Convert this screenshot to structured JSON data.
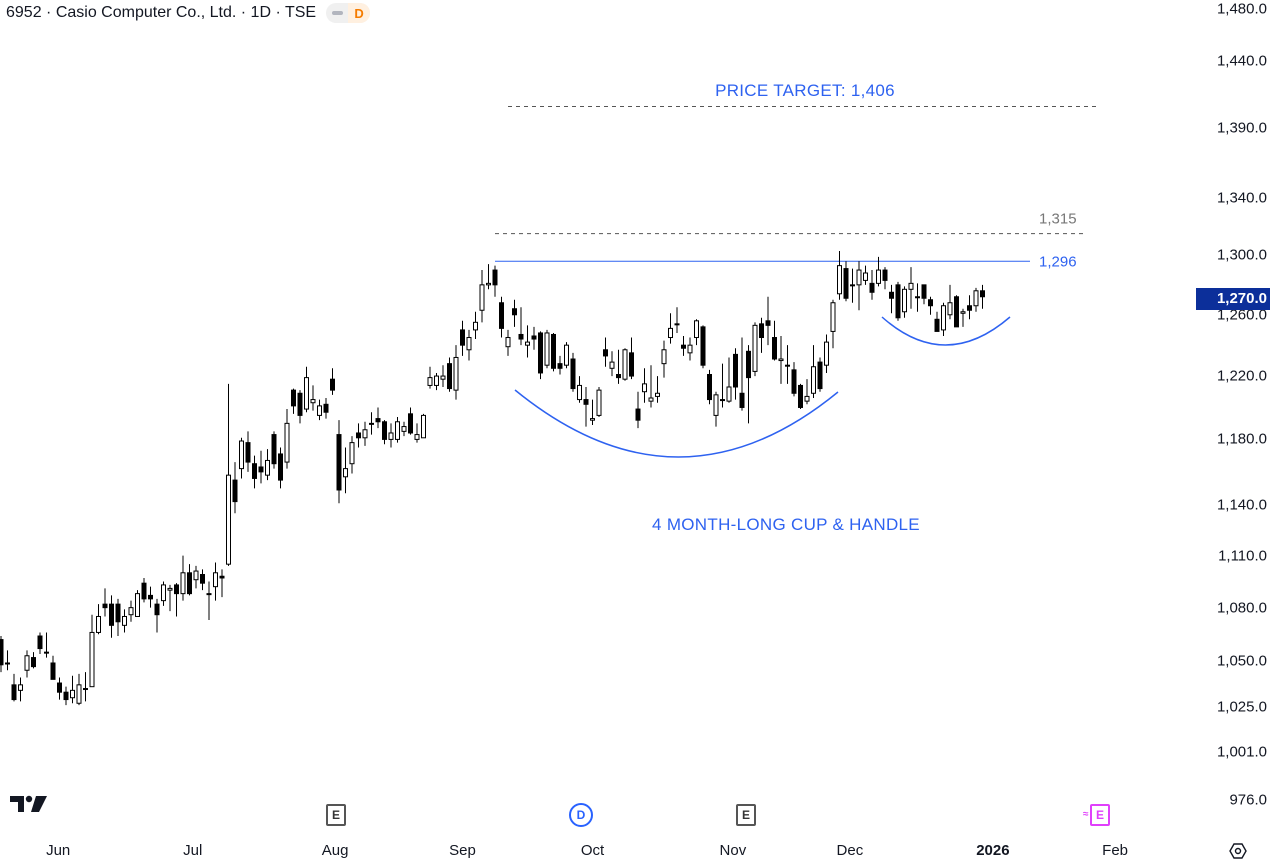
{
  "header": {
    "title": "6952 · Casio Computer Co., Ltd. · 1D · TSE",
    "market_status_badge": "D"
  },
  "annotations": {
    "price_target_label": "PRICE TARGET: 1,406",
    "pattern_label": "4 MONTH-LONG CUP & HANDLE",
    "resistance_label": "1,296",
    "upper_level_label": "1,315"
  },
  "price_axis": {
    "labels": [
      "1,480.0",
      "1,440.0",
      "1,390.0",
      "1,340.0",
      "1,300.0",
      "1,260.0",
      "1,220.0",
      "1,180.0",
      "1,140.0",
      "1,110.0",
      "1,080.0",
      "1,050.0",
      "1,025.0",
      "1,001.0",
      "976.0"
    ],
    "last_price_label": "1,270.0"
  },
  "time_axis": {
    "labels": [
      "Jun",
      "Jul",
      "Aug",
      "Sep",
      "Oct",
      "Nov",
      "Dec",
      "2026",
      "Feb"
    ]
  },
  "events": [
    {
      "type": "earnings",
      "label": "E"
    },
    {
      "type": "dividend",
      "label": "D"
    },
    {
      "type": "earnings",
      "label": "E"
    },
    {
      "type": "earnings-estimated",
      "label": "E"
    }
  ],
  "colors": {
    "accent": "#2962ff",
    "annotation": "#2e62f0",
    "last_price_badge": "#0c2f9a",
    "candle_up": "#ffffff",
    "candle_down": "#000000",
    "dashed_level": "#555555",
    "earnings_estimated": "#e040fb"
  },
  "chart_data": {
    "type": "candlestick",
    "title": "6952 · Casio Computer Co., Ltd. · 1D · TSE",
    "scale": "log",
    "ylim": [
      976,
      1480
    ],
    "y_ticks": [
      1480,
      1440,
      1390,
      1340,
      1300,
      1260,
      1220,
      1180,
      1140,
      1110,
      1080,
      1050,
      1025,
      1001,
      976
    ],
    "x_ticks": [
      {
        "label": "Jun",
        "index": 8.8
      },
      {
        "label": "Jul",
        "index": 29.5
      },
      {
        "label": "Aug",
        "index": 51.4
      },
      {
        "label": "Sep",
        "index": 71
      },
      {
        "label": "Oct",
        "index": 91
      },
      {
        "label": "Nov",
        "index": 112.6
      },
      {
        "label": "Dec",
        "index": 130.6
      },
      {
        "label": "2026",
        "index": 152.6
      },
      {
        "label": "Feb",
        "index": 171.4
      }
    ],
    "event_indices": [
      51.5,
      89.2,
      114.6,
      169
    ],
    "last_price": 1270,
    "levels": [
      {
        "name": "resistance",
        "value": 1296,
        "style": "solid",
        "from_index": 76
      },
      {
        "name": "upper",
        "value": 1315,
        "style": "dashed",
        "from_index": 76
      },
      {
        "name": "price_target",
        "value": 1406,
        "style": "dashed",
        "from_index": 78
      }
    ],
    "ohlc": [
      [
        1062,
        1064,
        1044,
        1048
      ],
      [
        1049,
        1056,
        1045,
        1049
      ],
      [
        1037,
        1043,
        1028,
        1029
      ],
      [
        1034,
        1041,
        1028,
        1037
      ],
      [
        1045,
        1056,
        1041,
        1053
      ],
      [
        1052,
        1055,
        1046,
        1047
      ],
      [
        1064,
        1066,
        1054,
        1057
      ],
      [
        1055,
        1066,
        1052,
        1055
      ],
      [
        1049,
        1053,
        1040,
        1040
      ],
      [
        1038,
        1041,
        1029,
        1033
      ],
      [
        1033,
        1036,
        1026,
        1029
      ],
      [
        1030,
        1042,
        1027,
        1034
      ],
      [
        1027,
        1043,
        1026,
        1037
      ],
      [
        1035,
        1044,
        1028,
        1035
      ],
      [
        1036,
        1076,
        1036,
        1066
      ],
      [
        1066,
        1082,
        1065,
        1075
      ],
      [
        1082,
        1091,
        1075,
        1080
      ],
      [
        1082,
        1087,
        1063,
        1070
      ],
      [
        1082,
        1085,
        1064,
        1072
      ],
      [
        1070,
        1079,
        1066,
        1075
      ],
      [
        1076,
        1084,
        1072,
        1080
      ],
      [
        1075,
        1090,
        1075,
        1088
      ],
      [
        1094,
        1097,
        1083,
        1085
      ],
      [
        1087,
        1092,
        1080,
        1085
      ],
      [
        1082,
        1085,
        1066,
        1076
      ],
      [
        1084,
        1095,
        1081,
        1093
      ],
      [
        1090,
        1093,
        1078,
        1091
      ],
      [
        1093,
        1094,
        1075,
        1088
      ],
      [
        1088,
        1110,
        1084,
        1100
      ],
      [
        1100,
        1105,
        1087,
        1088
      ],
      [
        1096,
        1104,
        1091,
        1101
      ],
      [
        1099,
        1102,
        1090,
        1094
      ],
      [
        1088,
        1095,
        1073,
        1088
      ],
      [
        1092,
        1106,
        1084,
        1100
      ],
      [
        1098,
        1102,
        1086,
        1097
      ],
      [
        1105,
        1215,
        1104,
        1158
      ],
      [
        1155,
        1166,
        1135,
        1142
      ],
      [
        1162,
        1181,
        1156,
        1179
      ],
      [
        1178,
        1185,
        1160,
        1166
      ],
      [
        1165,
        1170,
        1150,
        1156
      ],
      [
        1163,
        1173,
        1153,
        1160
      ],
      [
        1158,
        1174,
        1155,
        1167
      ],
      [
        1183,
        1185,
        1162,
        1165
      ],
      [
        1171,
        1175,
        1150,
        1155
      ],
      [
        1166,
        1199,
        1162,
        1190
      ],
      [
        1211,
        1212,
        1196,
        1201
      ],
      [
        1209,
        1211,
        1190,
        1195
      ],
      [
        1199,
        1226,
        1197,
        1219
      ],
      [
        1203,
        1214,
        1198,
        1205
      ],
      [
        1195,
        1205,
        1192,
        1201
      ],
      [
        1202,
        1206,
        1193,
        1197
      ],
      [
        1218,
        1225,
        1208,
        1211
      ],
      [
        1183,
        1192,
        1141,
        1149
      ],
      [
        1157,
        1175,
        1147,
        1162
      ],
      [
        1165,
        1182,
        1159,
        1178
      ],
      [
        1184,
        1190,
        1175,
        1181
      ],
      [
        1181,
        1191,
        1176,
        1186
      ],
      [
        1190,
        1197,
        1183,
        1190
      ],
      [
        1193,
        1200,
        1187,
        1191
      ],
      [
        1191,
        1192,
        1177,
        1180
      ],
      [
        1180,
        1190,
        1175,
        1184
      ],
      [
        1180,
        1194,
        1178,
        1191
      ],
      [
        1185,
        1191,
        1182,
        1188
      ],
      [
        1196,
        1200,
        1183,
        1184
      ],
      [
        1180,
        1190,
        1178,
        1183
      ],
      [
        1181,
        1196,
        1181,
        1195
      ],
      [
        1214,
        1226,
        1212,
        1219
      ],
      [
        1214,
        1222,
        1211,
        1220
      ],
      [
        1218,
        1227,
        1213,
        1220
      ],
      [
        1228,
        1232,
        1210,
        1212
      ],
      [
        1211,
        1240,
        1205,
        1232
      ],
      [
        1250,
        1256,
        1233,
        1240
      ],
      [
        1237,
        1250,
        1230,
        1245
      ],
      [
        1250,
        1262,
        1244,
        1255
      ],
      [
        1263,
        1290,
        1255,
        1280
      ],
      [
        1280,
        1294,
        1277,
        1281
      ],
      [
        1290,
        1293,
        1272,
        1280
      ],
      [
        1268,
        1272,
        1245,
        1251
      ],
      [
        1239,
        1250,
        1233,
        1245
      ],
      [
        1264,
        1270,
        1252,
        1260
      ],
      [
        1247,
        1265,
        1240,
        1244
      ],
      [
        1240,
        1253,
        1232,
        1242
      ],
      [
        1246,
        1252,
        1237,
        1244
      ],
      [
        1248,
        1249,
        1218,
        1222
      ],
      [
        1227,
        1250,
        1225,
        1248
      ],
      [
        1247,
        1248,
        1223,
        1225
      ],
      [
        1228,
        1233,
        1221,
        1225
      ],
      [
        1227,
        1242,
        1225,
        1240
      ],
      [
        1231,
        1235,
        1210,
        1212
      ],
      [
        1205,
        1220,
        1203,
        1214
      ],
      [
        1205,
        1213,
        1188,
        1202
      ],
      [
        1192,
        1205,
        1189,
        1193
      ],
      [
        1195,
        1213,
        1194,
        1211
      ],
      [
        1237,
        1245,
        1226,
        1233
      ],
      [
        1225,
        1236,
        1220,
        1229
      ],
      [
        1221,
        1237,
        1215,
        1219
      ],
      [
        1218,
        1238,
        1217,
        1237
      ],
      [
        1235,
        1245,
        1218,
        1220
      ],
      [
        1199,
        1210,
        1187,
        1192
      ],
      [
        1210,
        1225,
        1203,
        1215
      ],
      [
        1204,
        1227,
        1200,
        1206
      ],
      [
        1207,
        1220,
        1203,
        1209
      ],
      [
        1228,
        1243,
        1219,
        1237
      ],
      [
        1245,
        1261,
        1241,
        1251
      ],
      [
        1254,
        1265,
        1248,
        1254
      ],
      [
        1240,
        1246,
        1233,
        1238
      ],
      [
        1235,
        1245,
        1230,
        1240
      ],
      [
        1245,
        1257,
        1240,
        1256
      ],
      [
        1252,
        1253,
        1225,
        1227
      ],
      [
        1221,
        1224,
        1202,
        1205
      ],
      [
        1195,
        1210,
        1188,
        1208
      ],
      [
        1205,
        1228,
        1200,
        1205
      ],
      [
        1204,
        1232,
        1203,
        1213
      ],
      [
        1234,
        1238,
        1205,
        1213
      ],
      [
        1209,
        1245,
        1198,
        1200
      ],
      [
        1236,
        1240,
        1190,
        1219
      ],
      [
        1223,
        1255,
        1220,
        1253
      ],
      [
        1254,
        1258,
        1235,
        1245
      ],
      [
        1256,
        1272,
        1240,
        1253
      ],
      [
        1245,
        1256,
        1230,
        1231
      ],
      [
        1230,
        1246,
        1215,
        1231
      ],
      [
        1227,
        1240,
        1215,
        1227
      ],
      [
        1224,
        1229,
        1207,
        1209
      ],
      [
        1214,
        1215,
        1199,
        1200
      ],
      [
        1204,
        1218,
        1202,
        1207
      ],
      [
        1209,
        1240,
        1206,
        1226
      ],
      [
        1229,
        1232,
        1210,
        1212
      ],
      [
        1227,
        1247,
        1222,
        1242
      ],
      [
        1249,
        1270,
        1238,
        1268
      ],
      [
        1274,
        1303,
        1270,
        1293
      ],
      [
        1291,
        1296,
        1269,
        1271
      ],
      [
        1280,
        1291,
        1268,
        1280
      ],
      [
        1280,
        1296,
        1263,
        1290
      ],
      [
        1283,
        1293,
        1280,
        1288
      ],
      [
        1281,
        1290,
        1270,
        1275
      ],
      [
        1281,
        1299,
        1279,
        1290
      ],
      [
        1290,
        1292,
        1277,
        1283
      ],
      [
        1275,
        1280,
        1261,
        1271
      ],
      [
        1280,
        1282,
        1256,
        1258
      ],
      [
        1262,
        1279,
        1258,
        1277
      ],
      [
        1277,
        1292,
        1264,
        1281
      ],
      [
        1272,
        1281,
        1262,
        1272
      ],
      [
        1280,
        1280,
        1267,
        1271
      ],
      [
        1270,
        1272,
        1260,
        1266
      ],
      [
        1257,
        1262,
        1249,
        1249
      ],
      [
        1250,
        1268,
        1246,
        1266
      ],
      [
        1260,
        1280,
        1257,
        1268
      ],
      [
        1272,
        1273,
        1252,
        1252
      ],
      [
        1261,
        1264,
        1252,
        1262
      ],
      [
        1266,
        1273,
        1257,
        1263
      ],
      [
        1266,
        1278,
        1262,
        1276
      ],
      [
        1276,
        1280,
        1264,
        1272
      ]
    ]
  }
}
